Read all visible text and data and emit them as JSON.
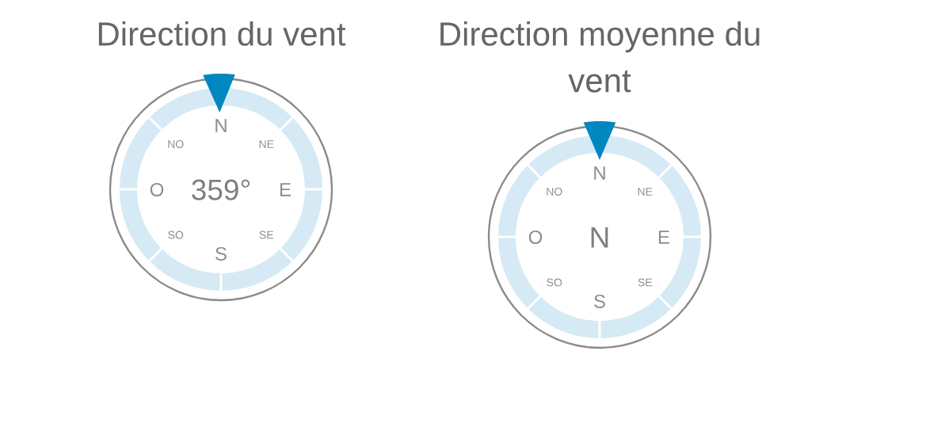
{
  "chart_data": [
    {
      "type": "other",
      "title": "Direction du vent",
      "annotations": [
        "N",
        "NE",
        "E",
        "SE",
        "S",
        "SO",
        "O",
        "NO"
      ],
      "values": [
        359
      ],
      "value_labels": [
        "359°"
      ],
      "color": "#0087c0"
    },
    {
      "type": "other",
      "title": "Direction moyenne du vent",
      "categories": [
        "N",
        "NE",
        "E",
        "SE",
        "S",
        "SO",
        "O",
        "NO"
      ],
      "needle": "N",
      "color": "#0087c0"
    }
  ]
}
